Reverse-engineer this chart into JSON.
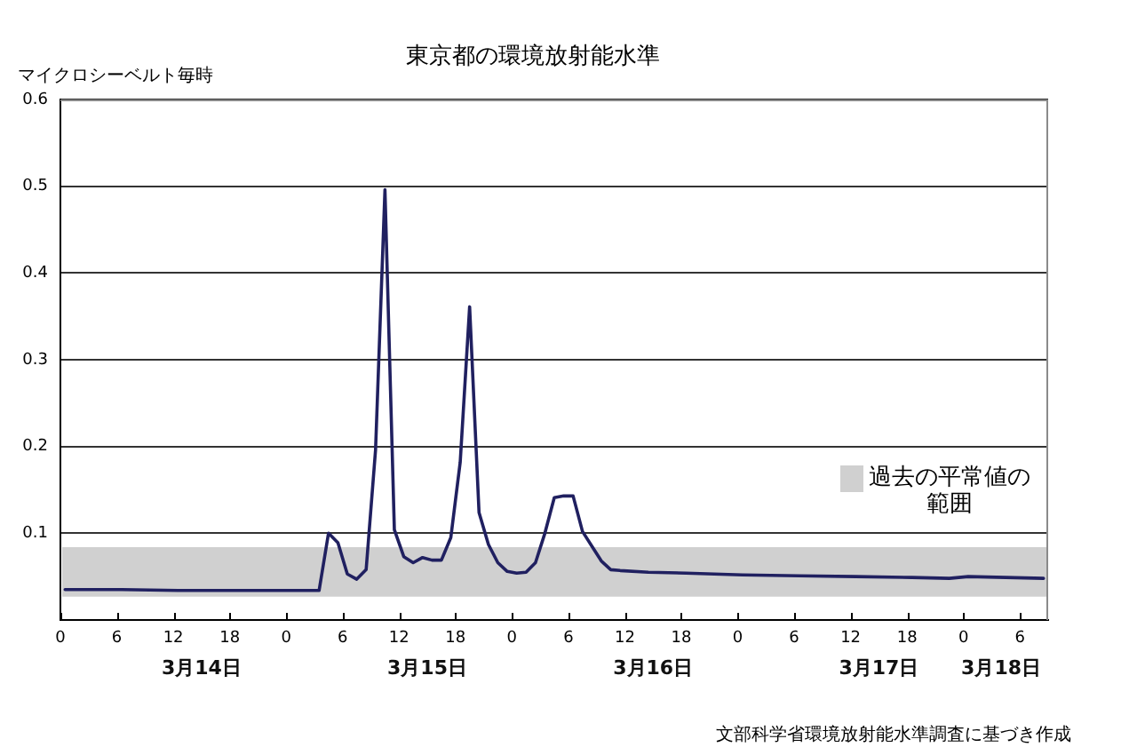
{
  "chart_data": {
    "type": "line",
    "title": "東京都の環境放射能水準",
    "ylabel": "マイクロシーベルト毎時",
    "annotations": [
      "文部科学省環境放射能水準調査に基づき作成"
    ],
    "x": [
      "--03-14T00:30",
      "--03-14T06:30",
      "--03-14T12:30",
      "--03-14T18:30",
      "--03-15T00:30",
      "--03-15T03:30",
      "--03-15T04:30",
      "--03-15T05:30",
      "--03-15T06:30",
      "--03-15T07:30",
      "--03-15T08:30",
      "--03-15T09:30",
      "--03-15T10:30",
      "--03-15T11:30",
      "--03-15T12:30",
      "--03-15T13:30",
      "--03-15T14:30",
      "--03-15T15:30",
      "--03-15T16:30",
      "--03-15T17:30",
      "--03-15T18:30",
      "--03-15T19:30",
      "--03-15T20:30",
      "--03-15T21:30",
      "--03-15T22:30",
      "--03-15T23:30",
      "--03-16T00:30",
      "--03-16T01:30",
      "--03-16T02:30",
      "--03-16T03:30",
      "--03-16T04:30",
      "--03-16T05:30",
      "--03-16T06:30",
      "--03-16T07:30",
      "--03-16T08:30",
      "--03-16T09:30",
      "--03-16T10:30",
      "--03-16T11:30",
      "--03-16T14:30",
      "--03-16T18:30",
      "--03-17T00:30",
      "--03-17T06:30",
      "--03-17T12:30",
      "--03-17T18:30",
      "--03-17T22:30",
      "--03-18T00:30",
      "--03-18T04:30",
      "--03-18T08:30"
    ],
    "values": [
      0.035,
      0.035,
      0.034,
      0.034,
      0.034,
      0.034,
      0.1,
      0.089,
      0.053,
      0.047,
      0.058,
      0.196,
      0.496,
      0.104,
      0.073,
      0.066,
      0.072,
      0.069,
      0.069,
      0.095,
      0.182,
      0.361,
      0.124,
      0.087,
      0.066,
      0.056,
      0.054,
      0.055,
      0.066,
      0.1,
      0.141,
      0.143,
      0.143,
      0.102,
      0.085,
      0.068,
      0.058,
      0.057,
      0.055,
      0.054,
      0.052,
      0.051,
      0.05,
      0.049,
      0.048,
      0.05,
      0.049,
      0.048
    ],
    "color": "#202060",
    "xlim": [
      "--03-14T00:00",
      "--03-18T09:00"
    ],
    "xticks": [
      {
        "value": "--03-14T00:00",
        "label": "0"
      },
      {
        "value": "--03-14T06:00",
        "label": "6"
      },
      {
        "value": "--03-14T12:00",
        "label": "12"
      },
      {
        "value": "--03-14T18:00",
        "label": "18"
      },
      {
        "value": "--03-15T00:00",
        "label": "0"
      },
      {
        "value": "--03-15T06:00",
        "label": "6"
      },
      {
        "value": "--03-15T12:00",
        "label": "12"
      },
      {
        "value": "--03-15T18:00",
        "label": "18"
      },
      {
        "value": "--03-16T00:00",
        "label": "0"
      },
      {
        "value": "--03-16T06:00",
        "label": "6"
      },
      {
        "value": "--03-16T12:00",
        "label": "12"
      },
      {
        "value": "--03-16T18:00",
        "label": "18"
      },
      {
        "value": "--03-17T00:00",
        "label": "0"
      },
      {
        "value": "--03-17T06:00",
        "label": "6"
      },
      {
        "value": "--03-17T12:00",
        "label": "12"
      },
      {
        "value": "--03-17T18:00",
        "label": "18"
      },
      {
        "value": "--03-18T00:00",
        "label": "0"
      },
      {
        "value": "--03-18T06:00",
        "label": "6"
      }
    ],
    "x2lim": [
      "--03-14T00:00",
      "--03-18T09:00"
    ],
    "x2ticks": [
      {
        "value": "--03-14T15:00",
        "label": "3月14日"
      },
      {
        "value": "--03-15T15:00",
        "label": "3月15日"
      },
      {
        "value": "--03-16T15:00",
        "label": "3月16日"
      },
      {
        "value": "--03-17T15:00",
        "label": "3月17日"
      },
      {
        "value": "--03-18T04:00",
        "label": "3月18日"
      }
    ],
    "ylim": [
      0,
      0.6
    ],
    "yticks": [
      0.1,
      0.2,
      0.3,
      0.4,
      0.5,
      0.6
    ],
    "grid": "y",
    "bands": [
      {
        "axis": "y",
        "from": 0.027,
        "to": 0.084,
        "label": "過去の平常値の範囲",
        "color": "#d0d0d0"
      }
    ]
  }
}
